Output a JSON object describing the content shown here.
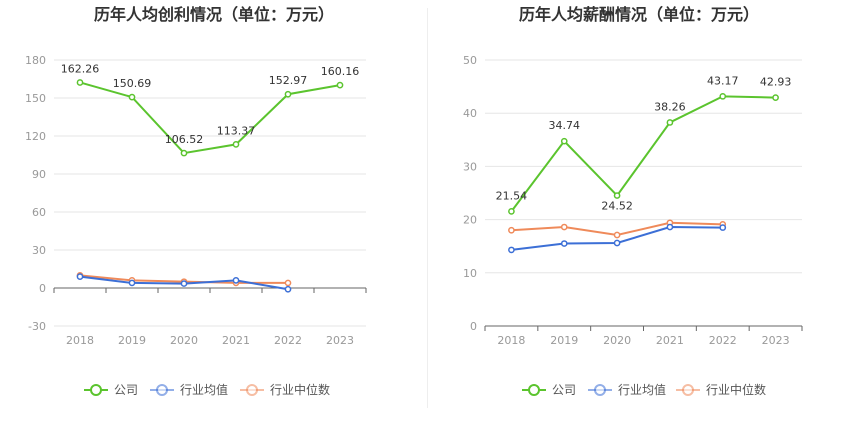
{
  "chart_data": [
    {
      "type": "line",
      "title": "历年人均创利情况（单位：万元）",
      "categories": [
        "2018",
        "2019",
        "2020",
        "2021",
        "2022",
        "2023"
      ],
      "ylim": [
        -30,
        180
      ],
      "yticks": [
        -30,
        0,
        30,
        60,
        90,
        120,
        150,
        180
      ],
      "grid": true,
      "legend_position": "bottom",
      "series": [
        {
          "name": "公司",
          "color": "#5bc42e",
          "values": [
            162.26,
            150.69,
            106.52,
            113.37,
            152.97,
            160.16
          ],
          "labels": [
            "162.26",
            "150.69",
            "106.52",
            "113.37",
            "152.97",
            "160.16"
          ]
        },
        {
          "name": "行业均值",
          "color": "#3c6fd6",
          "values": [
            9,
            4,
            3.5,
            6,
            -1,
            null
          ]
        },
        {
          "name": "行业中位数",
          "color": "#ef8a5a",
          "values": [
            10,
            6,
            5,
            4,
            4,
            null
          ]
        }
      ]
    },
    {
      "type": "line",
      "title": "历年人均薪酬情况（单位：万元）",
      "categories": [
        "2018",
        "2019",
        "2020",
        "2021",
        "2022",
        "2023"
      ],
      "ylim": [
        0,
        50
      ],
      "yticks": [
        0,
        10,
        20,
        30,
        40,
        50
      ],
      "grid": true,
      "legend_position": "bottom",
      "series": [
        {
          "name": "公司",
          "color": "#5bc42e",
          "values": [
            21.54,
            34.74,
            24.52,
            38.26,
            43.17,
            42.93
          ],
          "labels": [
            "21.54",
            "34.74",
            "24.52",
            "38.26",
            "43.17",
            "42.93"
          ]
        },
        {
          "name": "行业均值",
          "color": "#3c6fd6",
          "values": [
            14.3,
            15.5,
            15.6,
            18.6,
            18.5,
            null
          ]
        },
        {
          "name": "行业中位数",
          "color": "#ef8a5a",
          "values": [
            18,
            18.6,
            17.1,
            19.4,
            19.1,
            null
          ]
        }
      ]
    }
  ]
}
